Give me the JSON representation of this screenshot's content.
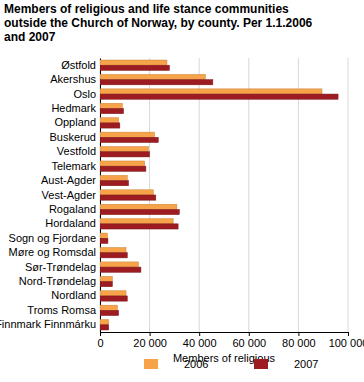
{
  "chart_data": {
    "type": "bar",
    "orientation": "horizontal",
    "title": "Members of religious and life stance communities outside the Church of Norway, by county. Per 1.1.2006 and 2007",
    "x_label": "Members of religious",
    "categories": [
      "Østfold",
      "Akershus",
      "Oslo",
      "Hedmark",
      "Oppland",
      "Buskerud",
      "Vestfold",
      "Telemark",
      "Aust-Agder",
      "Vest-Agder",
      "Rogaland",
      "Hordaland",
      "Sogn og Fjordane",
      "Møre og Romsdal",
      "Sør-Trøndelag",
      "Nord-Trøndelag",
      "Nordland",
      "Troms Romsa",
      "Finnmark Finnmárku"
    ],
    "series": [
      {
        "name": "2006",
        "color": "#f7a349",
        "values": [
          27000,
          42500,
          89500,
          9000,
          7500,
          22000,
          19500,
          18000,
          11000,
          21500,
          31000,
          29500,
          3000,
          10500,
          15500,
          5000,
          10500,
          7000,
          3500
        ]
      },
      {
        "name": "2007",
        "color": "#9c1c21",
        "values": [
          28000,
          45500,
          96000,
          9500,
          8000,
          23500,
          20000,
          18500,
          11500,
          22500,
          32000,
          31500,
          3200,
          11000,
          16500,
          5000,
          11000,
          7500,
          3500
        ]
      }
    ],
    "xlim": [
      0,
      100000
    ],
    "xticks": [
      0,
      {
        "value": 20000,
        "label": "20 000"
      },
      {
        "value": 40000,
        "label": "40 000"
      },
      {
        "value": 60000,
        "label": "60 000"
      },
      {
        "value": 80000,
        "label": "80 000"
      },
      {
        "value": 100000,
        "label": "100 000"
      }
    ],
    "grid": true,
    "legend": "bottom"
  }
}
